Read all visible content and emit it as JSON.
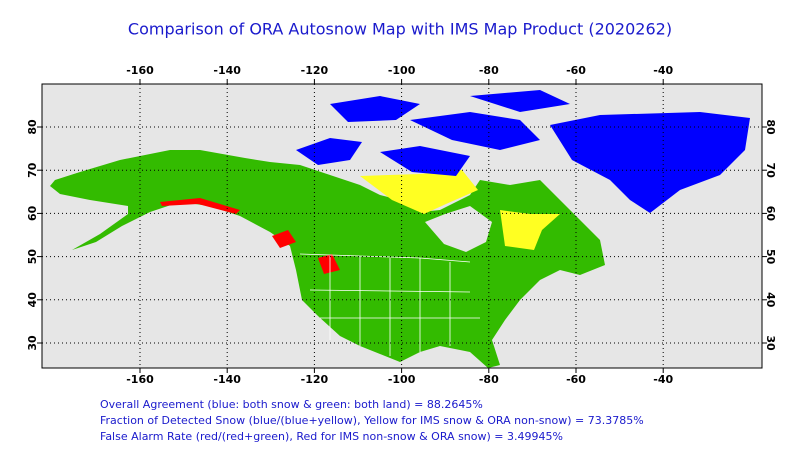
{
  "title": "Comparison of ORA Autosnow Map with IMS Map Product (2020262)",
  "map": {
    "lon_ticks": [
      -160,
      -140,
      -120,
      -100,
      -80,
      -60,
      -40
    ],
    "lat_ticks": [
      30,
      40,
      50,
      60,
      70,
      80
    ]
  },
  "stats": [
    "Overall Agreement (blue: both snow & green: both land) =  88.2645%",
    "Fraction of Detected Snow (blue/(blue+yellow), Yellow for IMS snow & ORA non-snow) = 73.3785%",
    "False Alarm Rate (red/(red+green), Red for IMS non-snow & ORA snow)  =  3.49945%"
  ]
}
